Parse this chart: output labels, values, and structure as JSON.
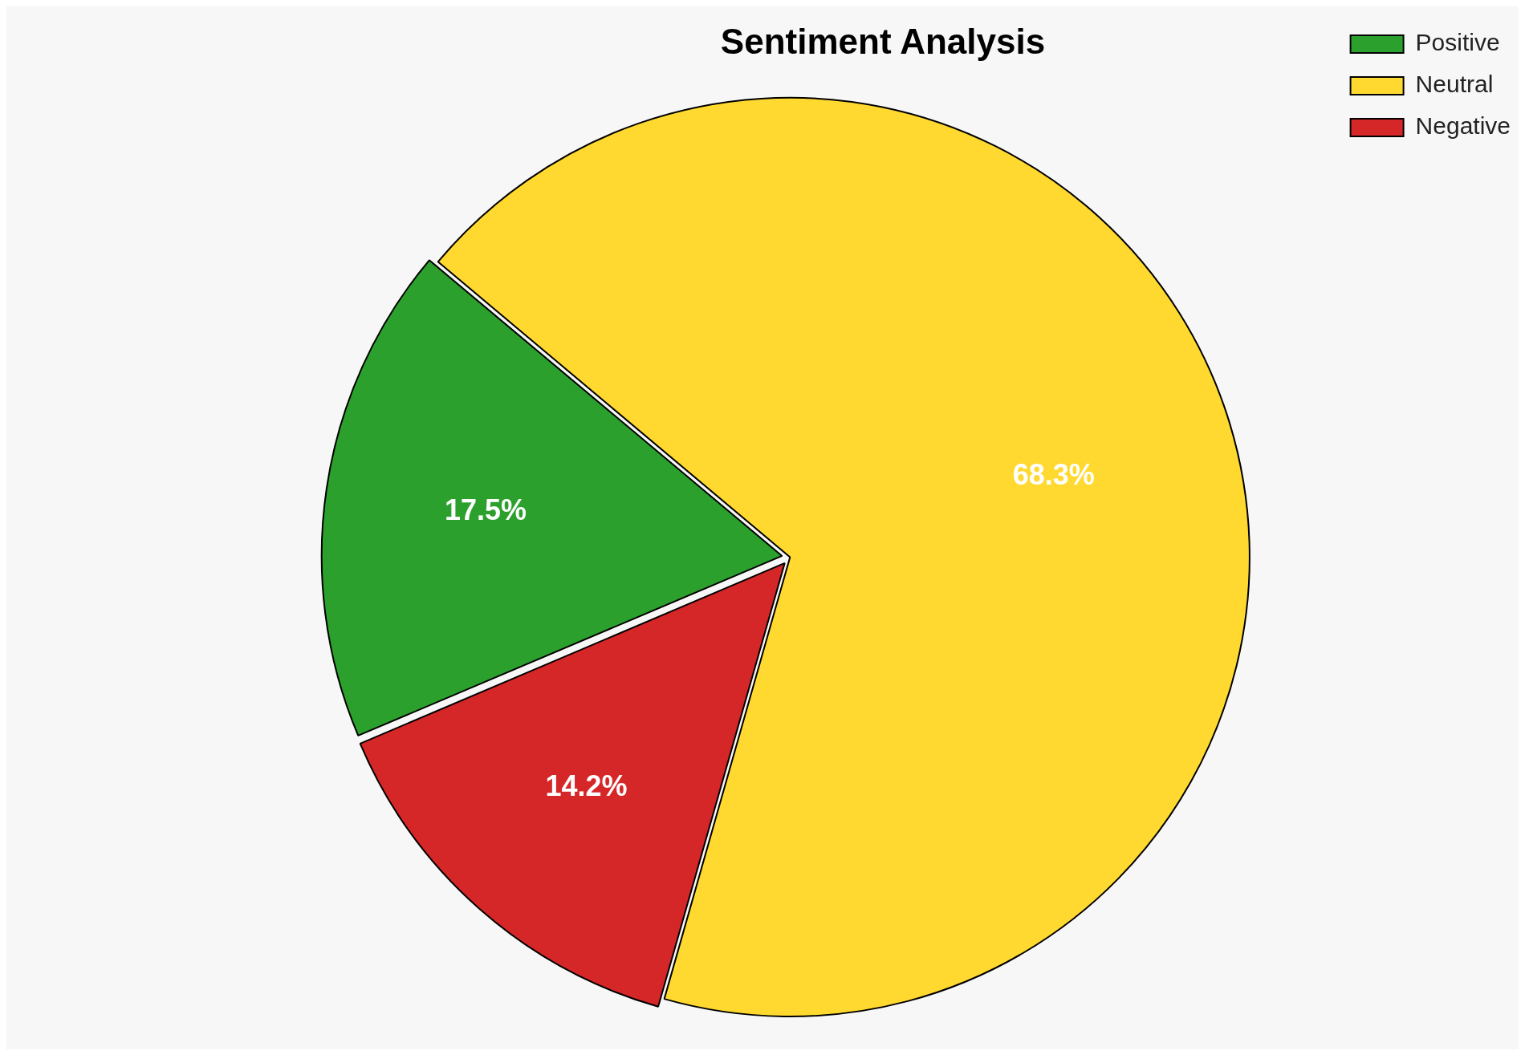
{
  "chart_data": {
    "type": "pie",
    "title": "Sentiment Analysis",
    "categories": [
      "Positive",
      "Neutral",
      "Negative"
    ],
    "values": [
      17.5,
      68.3,
      14.2
    ],
    "colors": [
      "#2ca02c",
      "#ffd92f",
      "#d62728"
    ],
    "value_labels": [
      "17.5%",
      "68.3%",
      "14.2%"
    ],
    "legend": "top right"
  }
}
